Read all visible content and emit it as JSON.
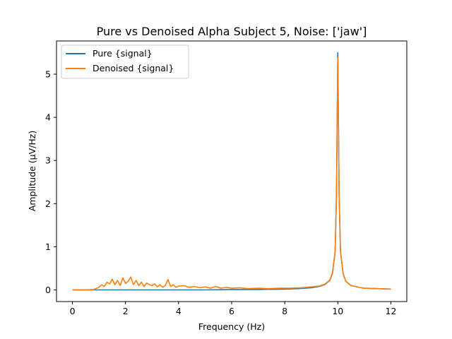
{
  "chart_data": {
    "type": "line",
    "title": "Pure vs Denoised Alpha Subject 5, Noise: ['jaw']",
    "xlabel": "Frequency (Hz)",
    "ylabel": "Amplitude (μV/Hz)",
    "xlim": [
      -0.6,
      12.6
    ],
    "ylim": [
      -0.27,
      5.77
    ],
    "xticks": [
      "0",
      "2",
      "4",
      "6",
      "8",
      "10",
      "12"
    ],
    "yticks": [
      "0",
      "1",
      "2",
      "3",
      "4",
      "5"
    ],
    "grid": false,
    "legend_position": "top-left",
    "legend": [
      "Pure {signal}",
      "Denoised {signal}"
    ],
    "series": [
      {
        "name": "Pure {signal}",
        "color": "#1f77b4",
        "x": [
          0,
          1,
          2,
          3,
          4,
          5,
          6,
          7,
          8,
          8.5,
          9,
          9.3,
          9.5,
          9.7,
          9.8,
          9.9,
          9.95,
          10.0,
          10.05,
          10.1,
          10.2,
          10.3,
          10.5,
          10.8,
          11,
          11.5,
          12
        ],
        "y": [
          0.0,
          0.0,
          0.0,
          0.0,
          0.0,
          0.0,
          0.01,
          0.01,
          0.02,
          0.03,
          0.05,
          0.08,
          0.12,
          0.22,
          0.38,
          0.9,
          2.2,
          5.5,
          2.2,
          0.9,
          0.38,
          0.2,
          0.1,
          0.06,
          0.04,
          0.03,
          0.02
        ]
      },
      {
        "name": "Denoised {signal}",
        "color": "#ff7f0e",
        "x": [
          0,
          0.5,
          0.8,
          1.0,
          1.1,
          1.2,
          1.3,
          1.4,
          1.5,
          1.6,
          1.7,
          1.8,
          1.9,
          2.0,
          2.1,
          2.2,
          2.3,
          2.4,
          2.5,
          2.6,
          2.7,
          2.8,
          2.9,
          3.0,
          3.1,
          3.2,
          3.3,
          3.4,
          3.5,
          3.6,
          3.7,
          3.8,
          3.9,
          4.0,
          4.2,
          4.4,
          4.6,
          4.8,
          5.0,
          5.2,
          5.4,
          5.6,
          5.8,
          6.0,
          6.3,
          6.6,
          7.0,
          7.4,
          7.8,
          8.2,
          8.6,
          9.0,
          9.3,
          9.5,
          9.7,
          9.8,
          9.9,
          9.95,
          10.0,
          10.05,
          10.1,
          10.2,
          10.3,
          10.5,
          10.8,
          11,
          11.5,
          12
        ],
        "y": [
          0.0,
          0.0,
          0.01,
          0.06,
          0.12,
          0.08,
          0.18,
          0.14,
          0.25,
          0.12,
          0.22,
          0.1,
          0.28,
          0.15,
          0.2,
          0.3,
          0.12,
          0.22,
          0.1,
          0.18,
          0.08,
          0.16,
          0.12,
          0.1,
          0.14,
          0.07,
          0.12,
          0.06,
          0.1,
          0.24,
          0.08,
          0.12,
          0.06,
          0.09,
          0.1,
          0.06,
          0.08,
          0.05,
          0.07,
          0.04,
          0.08,
          0.04,
          0.06,
          0.04,
          0.05,
          0.03,
          0.04,
          0.03,
          0.04,
          0.04,
          0.05,
          0.07,
          0.09,
          0.13,
          0.23,
          0.4,
          0.9,
          2.2,
          5.38,
          2.2,
          0.9,
          0.38,
          0.2,
          0.1,
          0.06,
          0.04,
          0.03,
          0.02
        ]
      }
    ]
  }
}
